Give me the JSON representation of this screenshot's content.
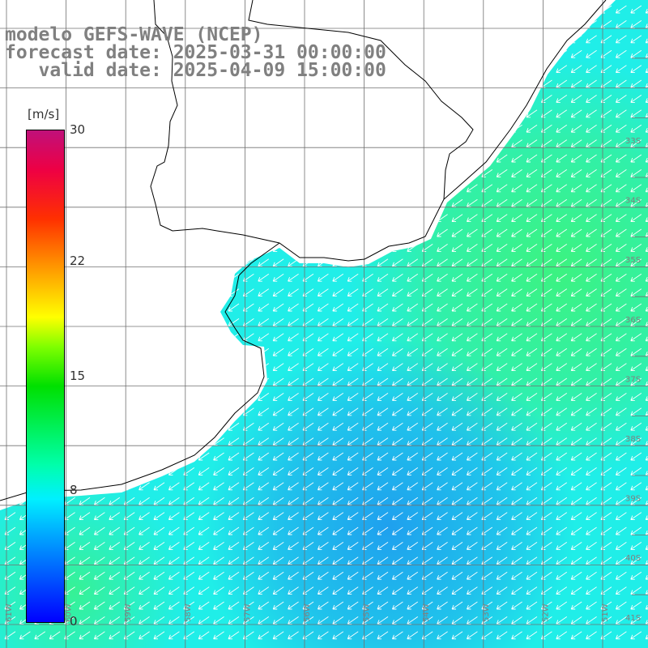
{
  "title": {
    "line1": "modelo GEFS-WAVE (NCEP)",
    "line2": "forecast date: 2025-03-31 00:00:00",
    "line3": "   valid date: 2025-04-09 15:00:00"
  },
  "colorbar": {
    "units": "[m/s]",
    "ticks": [
      {
        "value": 30,
        "label": "30"
      },
      {
        "value": 22,
        "label": "22"
      },
      {
        "value": 15,
        "label": "15"
      },
      {
        "value": 8,
        "label": "8"
      },
      {
        "value": 0,
        "label": "0"
      }
    ],
    "range": [
      0,
      30
    ]
  },
  "map": {
    "lat_labels": [
      "33S",
      "34S",
      "35S",
      "36S",
      "37S",
      "38S",
      "39S",
      "40S",
      "41S"
    ],
    "lon_labels": [
      "61W",
      "60W",
      "59W",
      "58W",
      "57W",
      "56W",
      "55W",
      "54W",
      "53W",
      "52W",
      "51W"
    ],
    "wind_direction": "NE to SW",
    "colors": {
      "land": "#ffffff",
      "grid": "#707070",
      "coastline": "#000000",
      "arrows": "#ffffff",
      "fill_green": "#3cf280",
      "fill_cyan": "#20eee8",
      "fill_blue": "#1fa0ee"
    }
  }
}
